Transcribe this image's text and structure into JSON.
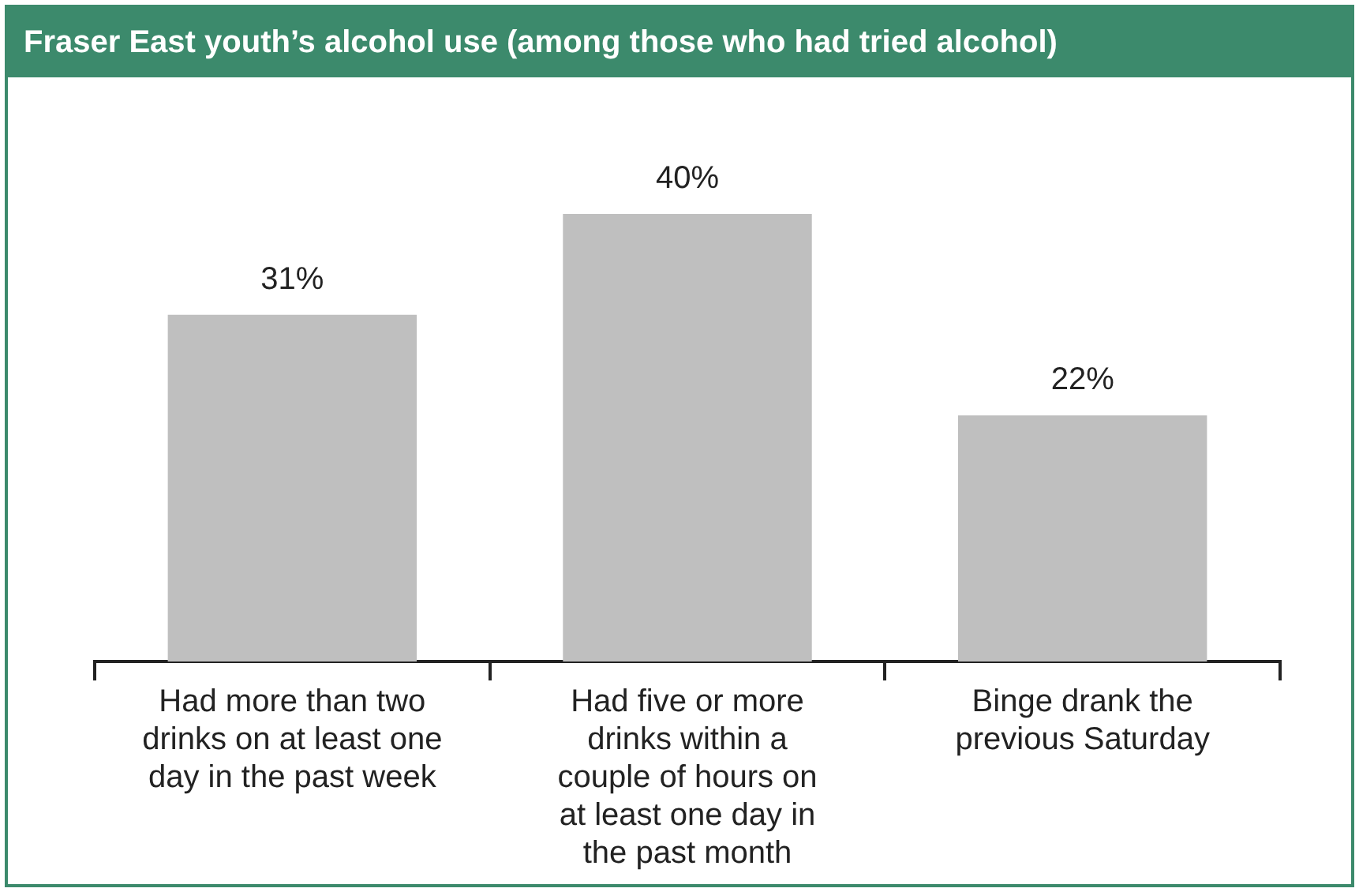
{
  "chart_data": {
    "type": "bar",
    "title": "Fraser East youth’s alcohol use (among those who had tried alcohol)",
    "categories": [
      "Had more than two\ndrinks on at least one\nday in the past week",
      "Had five or more\ndrinks within a\ncouple of hours on\nat least one day in\nthe past month",
      "Binge drank the\nprevious Saturday"
    ],
    "values": [
      31,
      40,
      22
    ],
    "color": "#bfbfbf",
    "value_labels": [
      "31%",
      "40%",
      "22%"
    ],
    "tick_labels": "x",
    "grid": false,
    "legend": false
  }
}
